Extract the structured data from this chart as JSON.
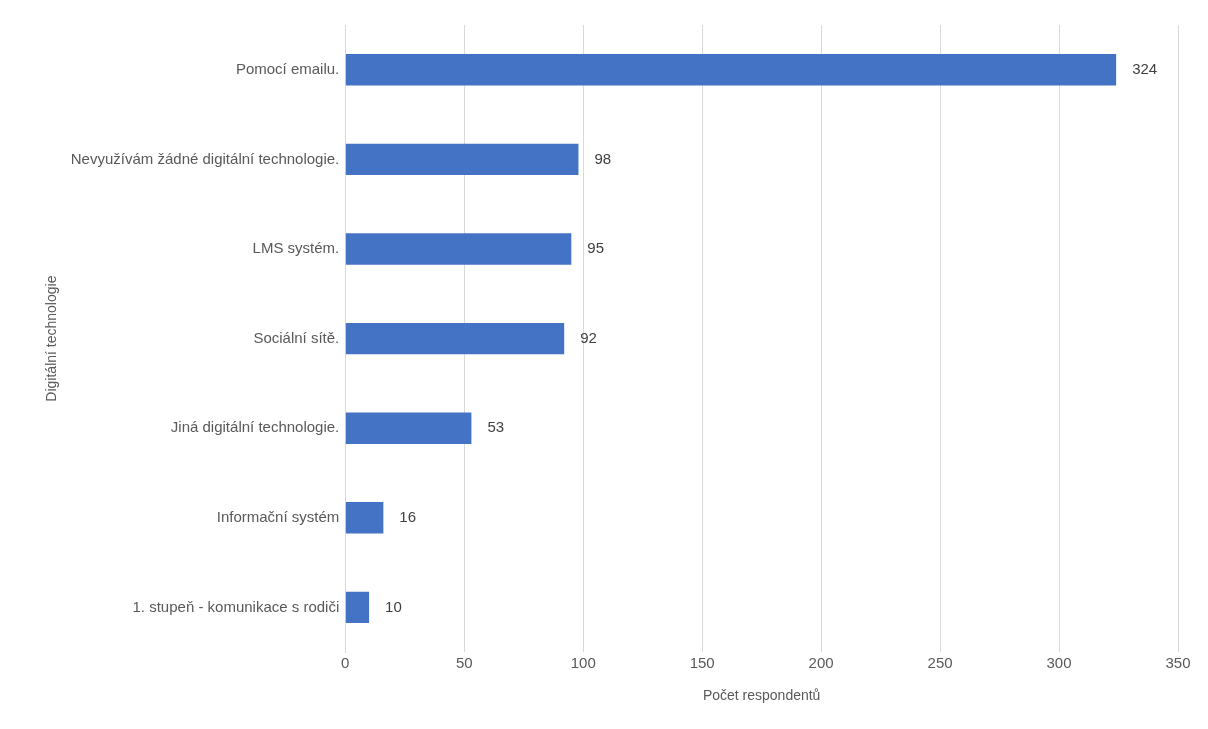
{
  "chart_data": {
    "type": "bar",
    "orientation": "horizontal",
    "categories": [
      "Pomocí emailu.",
      "Nevyužívám žádné digitální technologie.",
      "LMS systém.",
      "Sociální sítě.",
      "Jiná digitální technologie.",
      "Informační systém",
      "1. stupeň - komunikace s rodiči"
    ],
    "values": [
      324,
      98,
      95,
      92,
      53,
      16,
      10
    ],
    "color": "#4472c4",
    "xlim": [
      0,
      350
    ],
    "xticks": [
      0,
      50,
      100,
      150,
      200,
      250,
      300,
      350
    ],
    "xlabel": "Počet respondentů",
    "ylabel": "Digitální technologie",
    "grid": "x",
    "data_labels": true,
    "legend": false
  }
}
